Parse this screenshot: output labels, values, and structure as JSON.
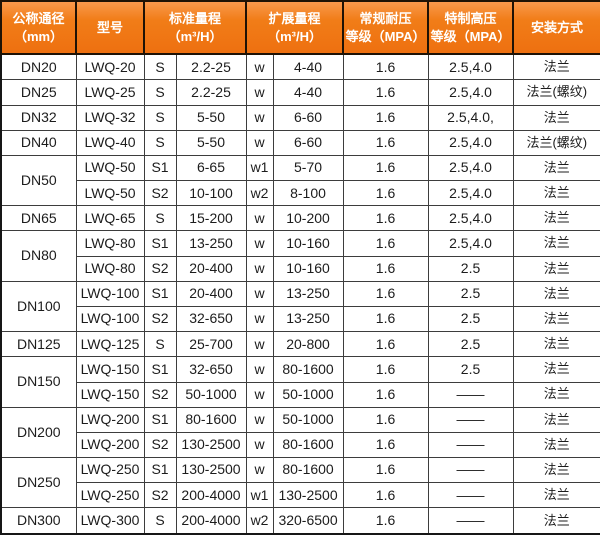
{
  "colors": {
    "header_orange": "#ee7010",
    "header_orange_light": "#f9994c",
    "header_text": "#ffffff",
    "grid_border": "#3d3d3d",
    "outer_border": "#161616",
    "cell_text": "#1c1c1c",
    "row_background": "#ffffff"
  },
  "table": {
    "headers": [
      {
        "label": "公称通径\n（mm）",
        "colspan": 1
      },
      {
        "label": "型号",
        "colspan": 1
      },
      {
        "label": "标准量程\n（m³/H）",
        "colspan": 2
      },
      {
        "label": "扩展量程\n（m³/H）",
        "colspan": 2
      },
      {
        "label": "常规耐压\n等级（MPA）",
        "colspan": 1
      },
      {
        "label": "特制高压\n等级（MPA）",
        "colspan": 1
      },
      {
        "label": "安装方式",
        "colspan": 1
      }
    ],
    "rows": [
      {
        "dn": "DN20",
        "dn_span": 1,
        "model": "LWQ-20",
        "s": "S",
        "std": "2.2-25",
        "w": "w",
        "ext": "4-40",
        "regular": "1.6",
        "special": "2.5,4.0",
        "install": "法兰"
      },
      {
        "dn": "DN25",
        "dn_span": 1,
        "model": "LWQ-25",
        "s": "S",
        "std": "2.2-25",
        "w": "w",
        "ext": "4-40",
        "regular": "1.6",
        "special": "2.5,4.0",
        "install": "法兰(螺纹)"
      },
      {
        "dn": "DN32",
        "dn_span": 1,
        "model": "LWQ-32",
        "s": "S",
        "std": "5-50",
        "w": "w",
        "ext": "6-60",
        "regular": "1.6",
        "special": "2.5,4.0,",
        "install": "法兰"
      },
      {
        "dn": "DN40",
        "dn_span": 1,
        "model": "LWQ-40",
        "s": "S",
        "std": "5-50",
        "w": "w",
        "ext": "6-60",
        "regular": "1.6",
        "special": "2.5,4.0",
        "install": "法兰(螺纹)"
      },
      {
        "dn": "DN50",
        "dn_span": 2,
        "model": "LWQ-50",
        "s": "S1",
        "std": "6-65",
        "w": "w1",
        "ext": "5-70",
        "regular": "1.6",
        "special": "2.5,4.0",
        "install": "法兰"
      },
      {
        "dn": null,
        "dn_span": 0,
        "model": "LWQ-50",
        "s": "S2",
        "std": "10-100",
        "w": "w2",
        "ext": "8-100",
        "regular": "1.6",
        "special": "2.5,4.0",
        "install": "法兰"
      },
      {
        "dn": "DN65",
        "dn_span": 1,
        "model": "LWQ-65",
        "s": "S",
        "std": "15-200",
        "w": "w",
        "ext": "10-200",
        "regular": "1.6",
        "special": "2.5,4.0",
        "install": "法兰"
      },
      {
        "dn": "DN80",
        "dn_span": 2,
        "model": "LWQ-80",
        "s": "S1",
        "std": "13-250",
        "w": "w",
        "ext": "10-160",
        "regular": "1.6",
        "special": "2.5,4.0",
        "install": "法兰"
      },
      {
        "dn": null,
        "dn_span": 0,
        "model": "LWQ-80",
        "s": "S2",
        "std": "20-400",
        "w": "w",
        "ext": "10-160",
        "regular": "1.6",
        "special": "2.5",
        "install": "法兰"
      },
      {
        "dn": "DN100",
        "dn_span": 2,
        "model": "LWQ-100",
        "s": "S1",
        "std": "20-400",
        "w": "w",
        "ext": "13-250",
        "regular": "1.6",
        "special": "2.5",
        "install": "法兰"
      },
      {
        "dn": null,
        "dn_span": 0,
        "model": "LWQ-100",
        "s": "S2",
        "std": "32-650",
        "w": "w",
        "ext": "13-250",
        "regular": "1.6",
        "special": "2.5",
        "install": "法兰"
      },
      {
        "dn": "DN125",
        "dn_span": 1,
        "model": "LWQ-125",
        "s": "S",
        "std": "25-700",
        "w": "w",
        "ext": "20-800",
        "regular": "1.6",
        "special": "2.5",
        "install": "法兰"
      },
      {
        "dn": "DN150",
        "dn_span": 2,
        "model": "LWQ-150",
        "s": "S1",
        "std": "32-650",
        "w": "w",
        "ext": "80-1600",
        "regular": "1.6",
        "special": "2.5",
        "install": "法兰"
      },
      {
        "dn": null,
        "dn_span": 0,
        "model": "LWQ-150",
        "s": "S2",
        "std": "50-1000",
        "w": "w",
        "ext": "50-1000",
        "regular": "1.6",
        "special": "——",
        "install": "法兰"
      },
      {
        "dn": "DN200",
        "dn_span": 2,
        "model": "LWQ-200",
        "s": "S1",
        "std": "80-1600",
        "w": "w",
        "ext": "50-1000",
        "regular": "1.6",
        "special": "——",
        "install": "法兰"
      },
      {
        "dn": null,
        "dn_span": 0,
        "model": "LWQ-200",
        "s": "S2",
        "std": "130-2500",
        "w": "w",
        "ext": "80-1600",
        "regular": "1.6",
        "special": "——",
        "install": "法兰"
      },
      {
        "dn": "DN250",
        "dn_span": 2,
        "model": "LWQ-250",
        "s": "S1",
        "std": "130-2500",
        "w": "w",
        "ext": "80-1600",
        "regular": "1.6",
        "special": "——",
        "install": "法兰"
      },
      {
        "dn": null,
        "dn_span": 0,
        "model": "LWQ-250",
        "s": "S2",
        "std": "200-4000",
        "w": "w1",
        "ext": "130-2500",
        "regular": "1.6",
        "special": "——",
        "install": "法兰"
      },
      {
        "dn": "DN300",
        "dn_span": 1,
        "model": "LWQ-300",
        "s": "S",
        "std": "200-4000",
        "w": "w2",
        "ext": "320-6500",
        "regular": "1.6",
        "special": "——",
        "install": "法兰"
      }
    ]
  }
}
